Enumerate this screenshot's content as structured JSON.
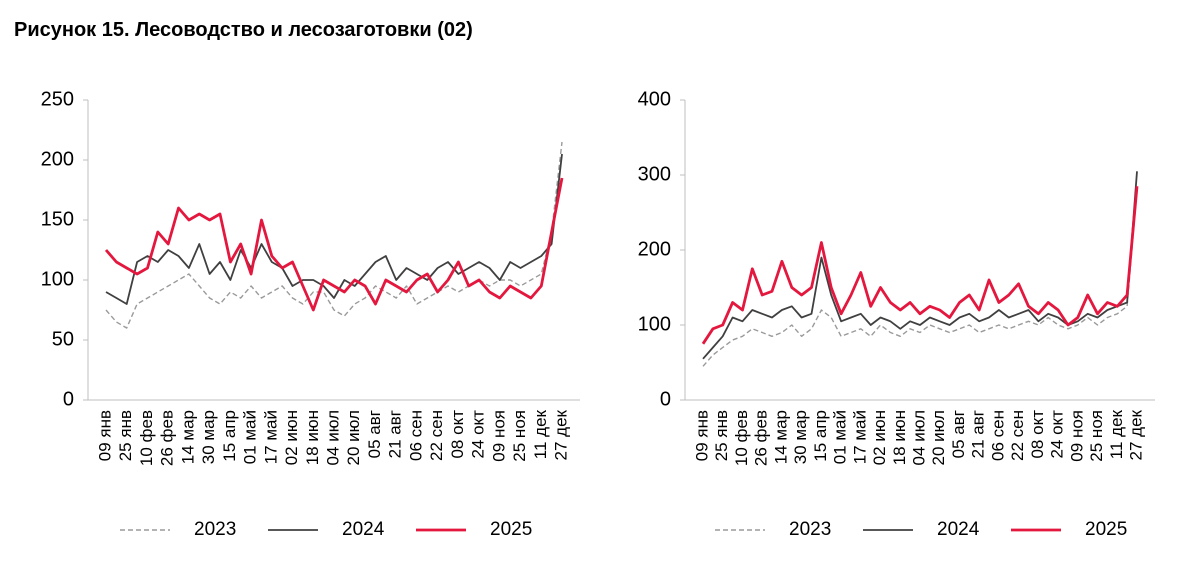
{
  "title": "Рисунок 15. Лесоводство и лесозаготовки (02)",
  "chart_data": [
    {
      "type": "line",
      "categories": [
        "09 янв",
        null,
        "25 янв",
        null,
        "10 фев",
        null,
        "26 фев",
        null,
        "14 мар",
        null,
        "30 мар",
        null,
        "15 апр",
        null,
        "01 май",
        null,
        "17 май",
        null,
        "02 июн",
        null,
        "18 июн",
        null,
        "04 июл",
        null,
        "20 июл",
        null,
        "05 авг",
        null,
        "21 авг",
        null,
        "06 сен",
        null,
        "22 сен",
        null,
        "08 окт",
        null,
        "24 окт",
        null,
        "09 ноя",
        null,
        "25 ноя",
        null,
        "11 дек",
        null,
        "27 дек"
      ],
      "ylim": [
        0,
        250
      ],
      "yticks": [
        0,
        50,
        100,
        150,
        200,
        250
      ],
      "series": [
        {
          "name": "2023",
          "color": "#9a9a9a",
          "dashed": true,
          "values": [
            75,
            65,
            60,
            80,
            85,
            90,
            95,
            100,
            105,
            95,
            85,
            80,
            90,
            85,
            95,
            85,
            90,
            95,
            85,
            80,
            90,
            90,
            75,
            70,
            80,
            85,
            95,
            90,
            85,
            95,
            80,
            85,
            90,
            95,
            90,
            95,
            100,
            95,
            100,
            100,
            95,
            100,
            105,
            140,
            215
          ]
        },
        {
          "name": "2024",
          "color": "#404040",
          "dashed": false,
          "values": [
            90,
            85,
            80,
            115,
            120,
            115,
            125,
            120,
            110,
            130,
            105,
            115,
            100,
            125,
            110,
            130,
            115,
            110,
            95,
            100,
            100,
            95,
            85,
            100,
            95,
            105,
            115,
            120,
            100,
            110,
            105,
            100,
            110,
            115,
            105,
            110,
            115,
            110,
            100,
            115,
            110,
            115,
            120,
            130,
            205
          ]
        },
        {
          "name": "2025",
          "color": "#e4173e",
          "dashed": false,
          "values": [
            125,
            115,
            110,
            105,
            110,
            140,
            130,
            160,
            150,
            155,
            150,
            155,
            115,
            130,
            105,
            150,
            120,
            110,
            115,
            95,
            75,
            100,
            95,
            90,
            100,
            95,
            80,
            100,
            95,
            90,
            100,
            105,
            90,
            100,
            115,
            95,
            100,
            90,
            85,
            95,
            90,
            85,
            95,
            140,
            185
          ]
        }
      ]
    },
    {
      "type": "line",
      "categories": [
        "09 янв",
        null,
        "25 янв",
        null,
        "10 фев",
        null,
        "26 фев",
        null,
        "14 мар",
        null,
        "30 мар",
        null,
        "15 апр",
        null,
        "01 май",
        null,
        "17 май",
        null,
        "02 июн",
        null,
        "18 июн",
        null,
        "04 июл",
        null,
        "20 июл",
        null,
        "05 авг",
        null,
        "21 авг",
        null,
        "06 сен",
        null,
        "22 сен",
        null,
        "08 окт",
        null,
        "24 окт",
        null,
        "09 ноя",
        null,
        "25 ноя",
        null,
        "11 дек",
        null,
        "27 дек"
      ],
      "ylim": [
        0,
        400
      ],
      "yticks": [
        0,
        100,
        200,
        300,
        400
      ],
      "series": [
        {
          "name": "2023",
          "color": "#9a9a9a",
          "dashed": true,
          "values": [
            45,
            60,
            70,
            80,
            85,
            95,
            90,
            85,
            90,
            100,
            85,
            95,
            120,
            110,
            85,
            90,
            95,
            85,
            100,
            90,
            85,
            95,
            90,
            100,
            95,
            90,
            95,
            100,
            90,
            95,
            100,
            95,
            100,
            105,
            100,
            110,
            100,
            95,
            100,
            110,
            100,
            110,
            115,
            125,
            280
          ]
        },
        {
          "name": "2024",
          "color": "#404040",
          "dashed": false,
          "values": [
            55,
            70,
            85,
            110,
            105,
            120,
            115,
            110,
            120,
            125,
            110,
            115,
            190,
            140,
            105,
            110,
            115,
            100,
            110,
            105,
            95,
            105,
            100,
            110,
            105,
            100,
            110,
            115,
            105,
            110,
            120,
            110,
            115,
            120,
            105,
            115,
            110,
            100,
            105,
            115,
            110,
            120,
            125,
            130,
            305
          ]
        },
        {
          "name": "2025",
          "color": "#e4173e",
          "dashed": false,
          "values": [
            75,
            95,
            100,
            130,
            120,
            175,
            140,
            145,
            185,
            150,
            140,
            150,
            210,
            150,
            115,
            140,
            170,
            125,
            150,
            130,
            120,
            130,
            115,
            125,
            120,
            110,
            130,
            140,
            120,
            160,
            130,
            140,
            155,
            125,
            115,
            130,
            120,
            100,
            110,
            140,
            115,
            130,
            125,
            140,
            285
          ]
        }
      ]
    }
  ]
}
